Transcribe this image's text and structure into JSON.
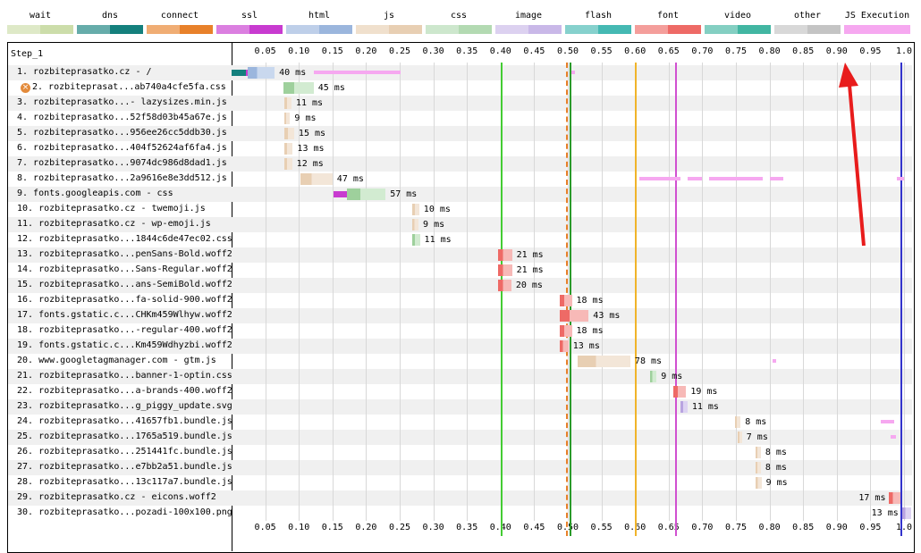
{
  "legend": [
    {
      "label": "wait",
      "color": "#ccddaa"
    },
    {
      "label": "dns",
      "color": "#14807d"
    },
    {
      "label": "connect",
      "color": "#e8812a"
    },
    {
      "label": "ssl",
      "color": "#c83bd0"
    },
    {
      "label": "html",
      "color": "#9bb6dd"
    },
    {
      "label": "js",
      "color": "#e8cfb3"
    },
    {
      "label": "css",
      "color": "#b3dab2"
    },
    {
      "label": "image",
      "color": "#c9b8e8"
    },
    {
      "label": "flash",
      "color": "#45b9b3"
    },
    {
      "label": "font",
      "color": "#ee6a66"
    },
    {
      "label": "video",
      "color": "#42b6a2"
    },
    {
      "label": "other",
      "color": "#c4c4c4"
    },
    {
      "label": "JS Execution",
      "color": "#f6a8f0"
    }
  ],
  "step_label": "Step_1",
  "ticks": [
    "0.05",
    "0.10",
    "0.15",
    "0.20",
    "0.25",
    "0.30",
    "0.35",
    "0.40",
    "0.45",
    "0.50",
    "0.55",
    "0.60",
    "0.65",
    "0.70",
    "0.75",
    "0.80",
    "0.85",
    "0.90",
    "0.95",
    "1.0"
  ],
  "markers": [
    {
      "name": "start-render",
      "t": 0.4,
      "color": "#44cc33",
      "dash": false
    },
    {
      "name": "dom-content-loaded",
      "t": 0.497,
      "color": "#e8812a",
      "dash": true
    },
    {
      "name": "dom-interactive",
      "t": 0.502,
      "color": "#2a9a2a",
      "dash": false
    },
    {
      "name": "on-load",
      "t": 0.6,
      "color": "#f0b42a",
      "dash": false
    },
    {
      "name": "on-load-end",
      "t": 0.66,
      "color": "#d050d0",
      "dash": false
    },
    {
      "name": "document-complete",
      "t": 0.995,
      "color": "#3333cc",
      "dash": false
    }
  ],
  "rows": [
    {
      "n": "1.",
      "label": "rozbiteprasatko.cz - /",
      "start": 0.0,
      "dur": 0.04,
      "type": "html",
      "ms": "40 ms",
      "pre": [
        {
          "c": "#14807d",
          "w": 0.021
        },
        {
          "c": "#c83bd0",
          "w": 0.003
        }
      ]
    },
    {
      "n": "2.",
      "label": "rozbiteprasat...ab740a4cfe5fa.css",
      "start": 0.077,
      "dur": 0.045,
      "type": "css",
      "ms": "45 ms",
      "warn": true
    },
    {
      "n": "3.",
      "label": "rozbiteprasatko...- lazysizes.min.js",
      "start": 0.078,
      "dur": 0.011,
      "type": "js",
      "ms": "11 ms"
    },
    {
      "n": "4.",
      "label": "rozbiteprasatko...52f58d03b45a67e.js",
      "start": 0.078,
      "dur": 0.009,
      "type": "js",
      "ms": "9 ms"
    },
    {
      "n": "5.",
      "label": "rozbiteprasatko...956ee26cc5ddb30.js",
      "start": 0.078,
      "dur": 0.015,
      "type": "js",
      "ms": "15 ms"
    },
    {
      "n": "6.",
      "label": "rozbiteprasatko...404f52624af6fa4.js",
      "start": 0.078,
      "dur": 0.013,
      "type": "js",
      "ms": "13 ms"
    },
    {
      "n": "7.",
      "label": "rozbiteprasatko...9074dc986d8dad1.js",
      "start": 0.078,
      "dur": 0.012,
      "type": "js",
      "ms": "12 ms"
    },
    {
      "n": "8.",
      "label": "rozbiteprasatko...2a9616e8e3dd512.js",
      "start": 0.103,
      "dur": 0.047,
      "type": "js",
      "ms": "47 ms"
    },
    {
      "n": "9.",
      "label": "fonts.googleapis.com - css",
      "start": 0.152,
      "dur": 0.057,
      "type": "css",
      "ms": "57 ms",
      "pre": [
        {
          "c": "#c83bd0",
          "w": 0.02
        }
      ]
    },
    {
      "n": "10.",
      "label": "rozbiteprasatko.cz - twemoji.js",
      "start": 0.269,
      "dur": 0.01,
      "type": "js",
      "ms": "10 ms"
    },
    {
      "n": "11.",
      "label": "rozbiteprasatko.cz - wp-emoji.js",
      "start": 0.269,
      "dur": 0.009,
      "type": "js",
      "ms": "9 ms"
    },
    {
      "n": "12.",
      "label": "rozbiteprasatko...1844c6de47ec02.css",
      "start": 0.269,
      "dur": 0.011,
      "type": "css",
      "ms": "11 ms"
    },
    {
      "n": "13.",
      "label": "rozbiteprasatko...penSans-Bold.woff2",
      "start": 0.396,
      "dur": 0.021,
      "type": "font",
      "ms": "21 ms"
    },
    {
      "n": "14.",
      "label": "rozbiteprasatko...Sans-Regular.woff2",
      "start": 0.396,
      "dur": 0.021,
      "type": "font",
      "ms": "21 ms"
    },
    {
      "n": "15.",
      "label": "rozbiteprasatko...ans-SemiBold.woff2",
      "start": 0.396,
      "dur": 0.02,
      "type": "font",
      "ms": "20 ms"
    },
    {
      "n": "16.",
      "label": "rozbiteprasatko...fa-solid-900.woff2",
      "start": 0.488,
      "dur": 0.018,
      "type": "font",
      "ms": "18 ms"
    },
    {
      "n": "17.",
      "label": "fonts.gstatic.c...CHKm459Wlhyw.woff2",
      "start": 0.488,
      "dur": 0.043,
      "type": "font",
      "ms": "43 ms"
    },
    {
      "n": "18.",
      "label": "rozbiteprasatko...-regular-400.woff2",
      "start": 0.488,
      "dur": 0.018,
      "type": "font",
      "ms": "18 ms"
    },
    {
      "n": "19.",
      "label": "fonts.gstatic.c...Km459Wdhyzbi.woff2",
      "start": 0.488,
      "dur": 0.013,
      "type": "font",
      "ms": "13 ms"
    },
    {
      "n": "20.",
      "label": "www.googletagmanager.com - gtm.js",
      "start": 0.515,
      "dur": 0.078,
      "type": "js",
      "ms": "78 ms"
    },
    {
      "n": "21.",
      "label": "rozbiteprasatko...banner-1-optin.css",
      "start": 0.623,
      "dur": 0.009,
      "type": "css",
      "ms": "9 ms"
    },
    {
      "n": "22.",
      "label": "rozbiteprasatko...a-brands-400.woff2",
      "start": 0.657,
      "dur": 0.019,
      "type": "font",
      "ms": "19 ms"
    },
    {
      "n": "23.",
      "label": "rozbiteprasatko...g_piggy_update.svg",
      "start": 0.667,
      "dur": 0.011,
      "type": "image",
      "ms": "11 ms"
    },
    {
      "n": "24.",
      "label": "rozbiteprasatko...41657fb1.bundle.js",
      "start": 0.749,
      "dur": 0.008,
      "type": "js",
      "ms": "8 ms"
    },
    {
      "n": "25.",
      "label": "rozbiteprasatko...1765a519.bundle.js",
      "start": 0.752,
      "dur": 0.007,
      "type": "js",
      "ms": "7 ms"
    },
    {
      "n": "26.",
      "label": "rozbiteprasatko...251441fc.bundle.js",
      "start": 0.779,
      "dur": 0.008,
      "type": "js",
      "ms": "8 ms"
    },
    {
      "n": "27.",
      "label": "rozbiteprasatko...e7bb2a51.bundle.js",
      "start": 0.779,
      "dur": 0.008,
      "type": "js",
      "ms": "8 ms"
    },
    {
      "n": "28.",
      "label": "rozbiteprasatko...13c117a7.bundle.js",
      "start": 0.779,
      "dur": 0.009,
      "type": "js",
      "ms": "9 ms"
    },
    {
      "n": "29.",
      "label": "rozbiteprasatko.cz - eicons.woff2",
      "start": 0.978,
      "dur": 0.017,
      "type": "font",
      "ms": "17 ms",
      "msLeft": true
    },
    {
      "n": "30.",
      "label": "rozbiteprasatko...pozadi-100x100.png",
      "start": 0.997,
      "dur": 0.013,
      "type": "image",
      "ms": "13 ms",
      "msLeft": true
    }
  ],
  "js_exec": [
    {
      "row": 0,
      "s": 0.123,
      "e": 0.251
    },
    {
      "row": 0,
      "s": 0.505,
      "e": 0.51
    },
    {
      "row": 7,
      "s": 0.607,
      "e": 0.668
    },
    {
      "row": 7,
      "s": 0.678,
      "e": 0.7
    },
    {
      "row": 7,
      "s": 0.71,
      "e": 0.79
    },
    {
      "row": 7,
      "s": 0.8,
      "e": 0.82
    },
    {
      "row": 7,
      "s": 0.99,
      "e": 1.0
    },
    {
      "row": 19,
      "s": 0.804,
      "e": 0.81
    },
    {
      "row": 23,
      "s": 0.965,
      "e": 0.985
    },
    {
      "row": 24,
      "s": 0.98,
      "e": 0.988
    }
  ]
}
